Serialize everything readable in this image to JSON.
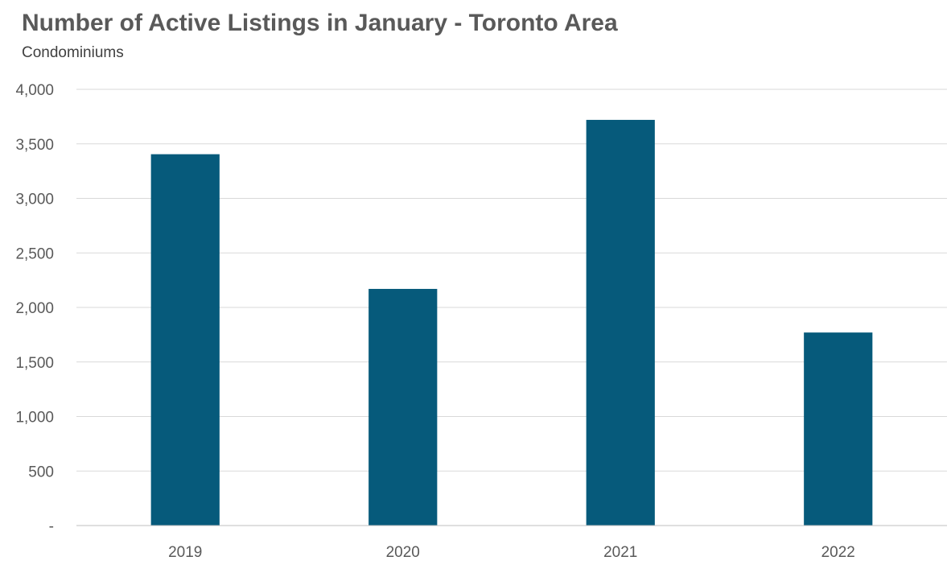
{
  "chart_data": {
    "type": "bar",
    "title": "Number of Active Listings in January - Toronto Area",
    "subtitle": "Condominiums",
    "categories": [
      "2019",
      "2020",
      "2021",
      "2022"
    ],
    "values": [
      3405,
      2170,
      3720,
      1770
    ],
    "xlabel": "",
    "ylabel": "",
    "ylim": [
      0,
      4000
    ],
    "yticks": [
      0,
      500,
      1000,
      1500,
      2000,
      2500,
      3000,
      3500,
      4000
    ],
    "ytick_labels": [
      "-",
      "500",
      "1,000",
      "1,500",
      "2,000",
      "2,500",
      "3,000",
      "3,500",
      "4,000"
    ],
    "grid": true,
    "bar_color": "#065A7B",
    "grid_color": "#D9D9D9"
  }
}
